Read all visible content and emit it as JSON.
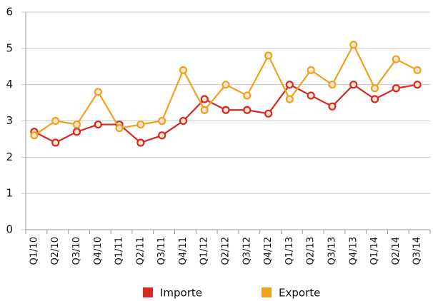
{
  "chart_data": {
    "type": "line",
    "categories": [
      "Q1/10",
      "Q2/10",
      "Q3/10",
      "Q4/10",
      "Q1/11",
      "Q2/11",
      "Q3/11",
      "Q4/11",
      "Q1/12",
      "Q2/12",
      "Q3/12",
      "Q4/12",
      "Q1/13",
      "Q2/13",
      "Q3/13",
      "Q4/13",
      "Q1/14",
      "Q2/14",
      "Q3/14"
    ],
    "series": [
      {
        "name": "Importe",
        "color": "#d8281f",
        "values": [
          2.7,
          2.4,
          2.7,
          2.9,
          2.9,
          2.4,
          2.6,
          3.0,
          3.6,
          3.3,
          3.3,
          3.2,
          4.0,
          3.7,
          3.4,
          4.0,
          3.6,
          3.9,
          4.0
        ]
      },
      {
        "name": "Exporte",
        "color": "#f0a11c",
        "values": [
          2.6,
          3.0,
          2.9,
          3.8,
          2.8,
          2.9,
          3.0,
          4.4,
          3.3,
          4.0,
          3.7,
          4.8,
          3.6,
          4.4,
          4.0,
          5.1,
          3.9,
          4.7,
          4.4
        ]
      }
    ],
    "ylim": [
      0,
      6
    ],
    "yticks": [
      0,
      1,
      2,
      3,
      4,
      5,
      6
    ],
    "grid": true
  }
}
